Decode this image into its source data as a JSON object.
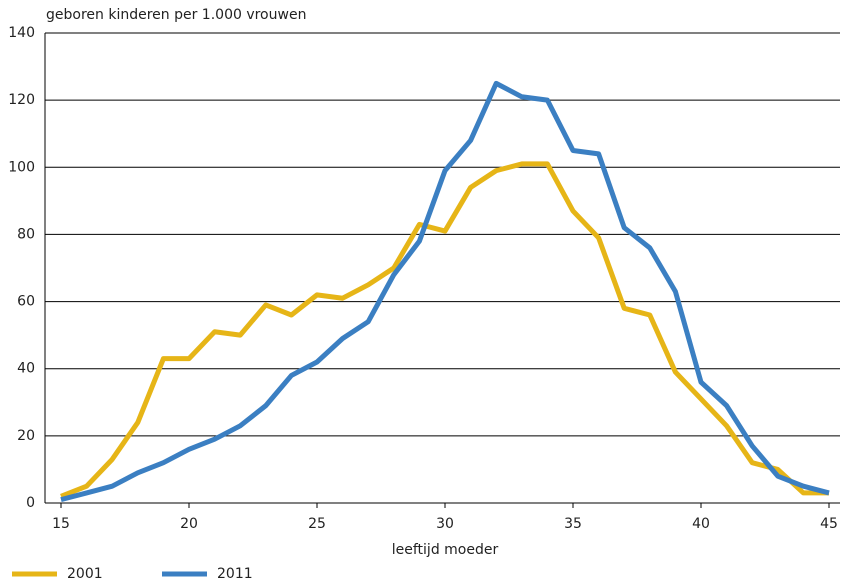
{
  "chart_data": {
    "type": "line",
    "ylabel": "geboren kinderen per 1.000 vrouwen",
    "xlabel": "leeftijd moeder",
    "x": [
      15,
      16,
      17,
      18,
      19,
      20,
      21,
      22,
      23,
      24,
      25,
      26,
      27,
      28,
      29,
      30,
      31,
      32,
      33,
      34,
      35,
      36,
      37,
      38,
      39,
      40,
      41,
      42,
      43,
      44,
      45
    ],
    "series": [
      {
        "name": "2001",
        "color": "#e6b517",
        "values": [
          2,
          5,
          13,
          24,
          43,
          43,
          51,
          50,
          59,
          56,
          62,
          61,
          65,
          70,
          83,
          81,
          94,
          99,
          101,
          101,
          87,
          79,
          58,
          56,
          39,
          31,
          23,
          12,
          10,
          3,
          3
        ]
      },
      {
        "name": "2011",
        "color": "#3b7fc2",
        "values": [
          1,
          3,
          5,
          9,
          12,
          16,
          19,
          23,
          29,
          38,
          42,
          49,
          54,
          68,
          78,
          99,
          108,
          125,
          121,
          120,
          105,
          104,
          82,
          76,
          63,
          36,
          29,
          17,
          8,
          5,
          3
        ]
      }
    ],
    "xlim": [
      15,
      45
    ],
    "xticks": [
      15,
      20,
      25,
      30,
      35,
      40,
      45
    ],
    "ylim": [
      0,
      140
    ],
    "yticks": [
      0,
      20,
      40,
      60,
      80,
      100,
      120,
      140
    ],
    "grid": true,
    "legend": "bottom-left"
  }
}
